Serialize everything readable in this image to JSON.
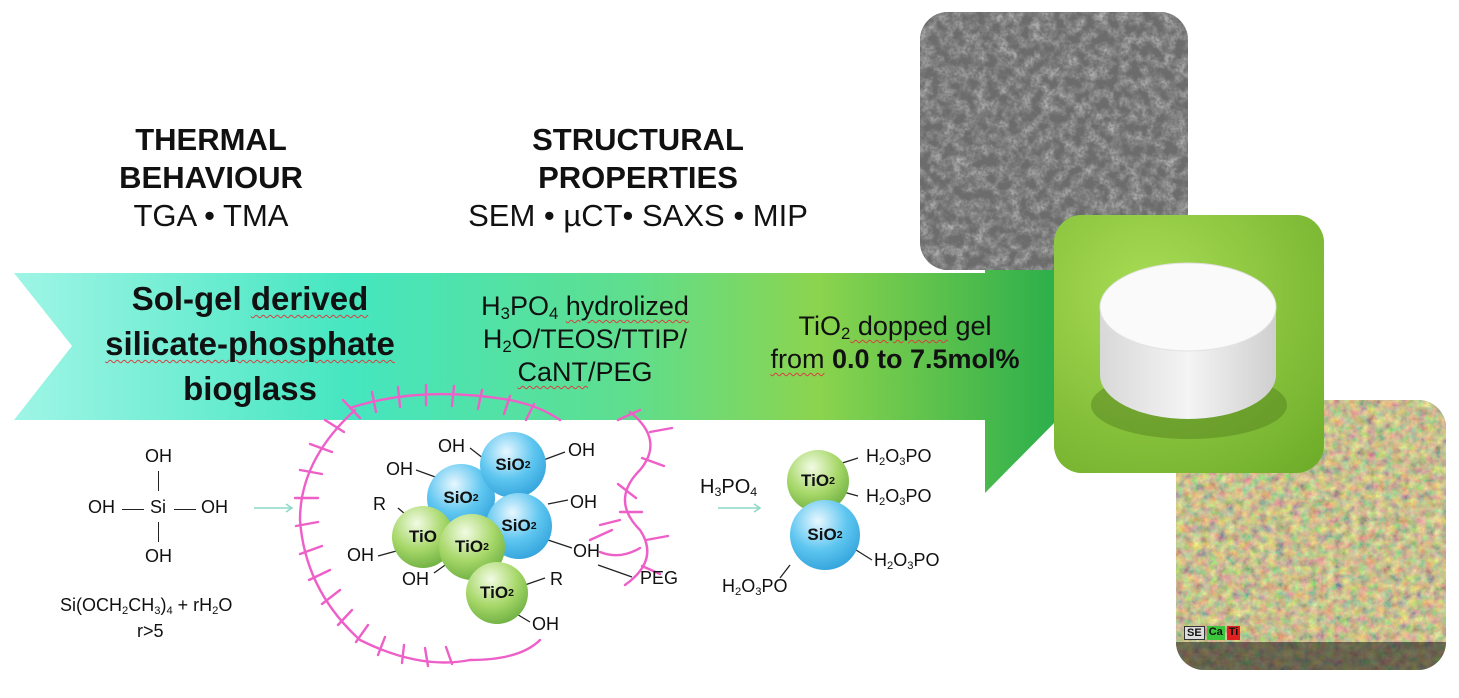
{
  "headings": {
    "thermal": {
      "line1": "THERMAL",
      "line2": "BEHAVIOUR",
      "methods": "TGA • TMA"
    },
    "structural": {
      "line1": "STRUCTURAL",
      "line2": "PROPERTIES",
      "methods": "SEM • µCT• SAXS • MIP"
    }
  },
  "arrow": {
    "stage1": {
      "line1_a": "Sol-gel ",
      "line1_b": "derived",
      "line2": "silicate-phosphate",
      "line3": "bioglass"
    },
    "stage2": {
      "h3po4_prefix": "H",
      "h3po4_sub1": "3",
      "h3po4_mid": "PO",
      "h3po4_sub2": "4",
      "word": "hydrolized",
      "line2_a": "H",
      "line2_sub": "2",
      "line2_b": "O/TEOS/TTIP/",
      "line3_a": "CaNT",
      "line3_b": "/PEG"
    },
    "stage3": {
      "line1_a": "TiO",
      "line1_sub": "2",
      "line1_b": " dopped",
      "line1_c": " gel",
      "line2_a": "from",
      "line2_b": " 0.0 to 7.5mol%"
    }
  },
  "chemistry": {
    "silanol": {
      "oh_top": "OH",
      "oh_left": "OH",
      "si": "Si",
      "oh_right": "OH",
      "oh_bottom": "OH"
    },
    "teos_formula": {
      "a": "Si(OCH",
      "s1": "2",
      "b": "CH",
      "s2": "3",
      "c": ")",
      "s3": "4",
      "d": " + rH",
      "s4": "2",
      "e": "O"
    },
    "ratio": "r>5",
    "cluster": {
      "sio2": "SiO",
      "tio2": "TiO",
      "sub2": "2",
      "tio": "TiO",
      "oh": "OH",
      "r": "R",
      "peg": "PEG"
    },
    "h3po4": {
      "a": "H",
      "s1": "3",
      "b": "PO",
      "s2": "4"
    },
    "product": {
      "h2o3po_a": "H",
      "s1": "2",
      "h2o3po_b": "O",
      "s2": "3",
      "h2o3po_c": "PO"
    }
  },
  "colors": {
    "arrow_start": "#7af0d8",
    "arrow_mid": "#3cdcb4",
    "arrow_end": "#19a83e",
    "peg": "#ee5fc8",
    "sample_bg": "#8cc63f"
  },
  "photos": {
    "edx_badges": [
      "SE",
      "Ca",
      "Ti"
    ]
  }
}
